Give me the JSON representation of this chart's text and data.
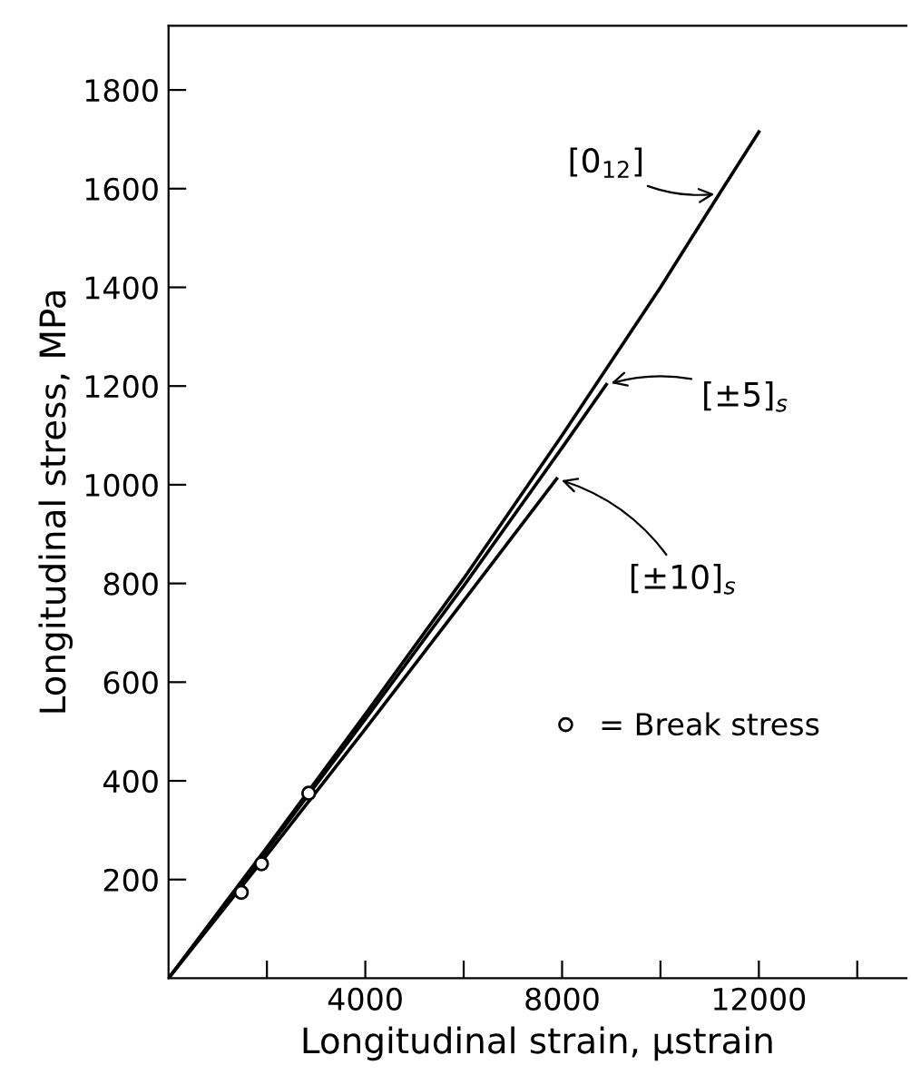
{
  "chart_data": {
    "type": "line",
    "xlabel": "Longitudinal strain, μstrain",
    "ylabel": "Longitudinal stress, MPa",
    "series": [
      {
        "name": "[0$_{12}$]",
        "color": "#000000",
        "x": [
          0,
          2000,
          4000,
          6000,
          8000,
          10000,
          11200,
          12000
        ],
        "values": [
          0,
          265,
          535,
          810,
          1100,
          1400,
          1590,
          1715
        ]
      },
      {
        "name": "[±5]$_{s}$",
        "color": "#000000",
        "x": [
          0,
          2000,
          4000,
          6000,
          8000,
          8900
        ],
        "values": [
          0,
          260,
          525,
          795,
          1075,
          1203
        ]
      },
      {
        "name": "[±10]$_{s}$",
        "color": "#000000",
        "x": [
          0,
          2000,
          4000,
          6000,
          7890
        ],
        "values": [
          0,
          250,
          505,
          765,
          1012
        ]
      },
      {
        "name": "= Break stress",
        "type": "scatter",
        "marker": "circle",
        "color": "#000000",
        "x": [
          1480,
          1890,
          2850
        ],
        "values": [
          174,
          232,
          375
        ]
      }
    ],
    "xlim": [
      0,
      15000
    ],
    "ylim": [
      0,
      1930
    ],
    "xticks": [
      {
        "value": 2000,
        "label": null
      },
      4000,
      {
        "value": 6000,
        "label": null
      },
      8000,
      {
        "value": 10000,
        "label": null
      },
      12000,
      {
        "value": 14000,
        "label": null
      }
    ],
    "yticks": [
      200,
      400,
      600,
      800,
      1000,
      1200,
      1400,
      1600,
      1800
    ],
    "grid": false,
    "legend": "bottom right",
    "line_style": "solid"
  }
}
